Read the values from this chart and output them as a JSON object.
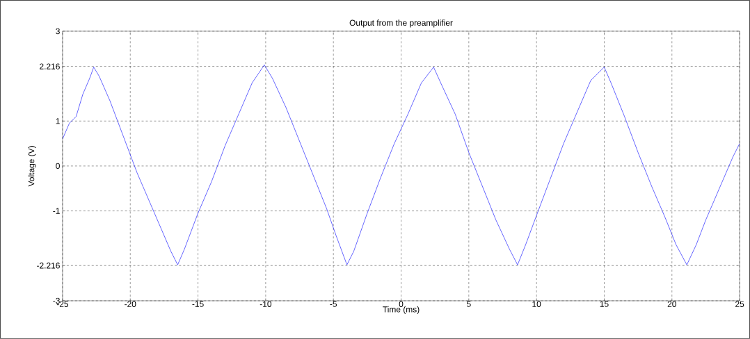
{
  "chart_data": {
    "type": "line",
    "title": "Output from the preamplifier",
    "xlabel": "Time (ms)",
    "ylabel": "Voltage (V)",
    "x": [
      -25,
      -24.5,
      -24,
      -23.5,
      -23,
      -22.7,
      -22.3,
      -21.5,
      -20.5,
      -19.5,
      -18.5,
      -17.5,
      -17,
      -16.5,
      -16,
      -15,
      -14,
      -13,
      -12,
      -11,
      -10.1,
      -9.5,
      -8.5,
      -7.5,
      -6.5,
      -5.5,
      -4.8,
      -4,
      -3.5,
      -2.5,
      -1.5,
      -0.5,
      0.5,
      1.5,
      2.4,
      3,
      4,
      5,
      6,
      7,
      8,
      8.6,
      9.2,
      10,
      11,
      12,
      13,
      14,
      15,
      15.5,
      16.5,
      17.5,
      18.5,
      19.5,
      20.3,
      21.1,
      21.8,
      22.5,
      23.5,
      24.5,
      25
    ],
    "series": [
      {
        "color": "#0000ff",
        "values": [
          0.6,
          0.95,
          1.1,
          1.6,
          1.95,
          2.2,
          2.0,
          1.45,
          0.65,
          -0.15,
          -0.85,
          -1.55,
          -1.9,
          -2.2,
          -1.85,
          -1.05,
          -0.35,
          0.45,
          1.15,
          1.85,
          2.25,
          1.95,
          1.3,
          0.55,
          -0.2,
          -0.95,
          -1.55,
          -2.2,
          -1.9,
          -1.05,
          -0.25,
          0.5,
          1.15,
          1.85,
          2.2,
          1.8,
          1.15,
          0.3,
          -0.45,
          -1.2,
          -1.85,
          -2.2,
          -1.75,
          -1.1,
          -0.3,
          0.5,
          1.2,
          1.9,
          2.2,
          1.85,
          1.1,
          0.3,
          -0.45,
          -1.15,
          -1.75,
          -2.2,
          -1.75,
          -1.2,
          -0.5,
          0.2,
          0.5
        ]
      }
    ],
    "xlim": [
      -25,
      25
    ],
    "ylim": [
      -3,
      3
    ],
    "xticks": [
      -25,
      -20,
      -15,
      -10,
      -5,
      0,
      5,
      10,
      15,
      20,
      25
    ],
    "yticks": [
      -3,
      -2.216,
      -1,
      0,
      1,
      2.216,
      3
    ],
    "grid": true
  }
}
